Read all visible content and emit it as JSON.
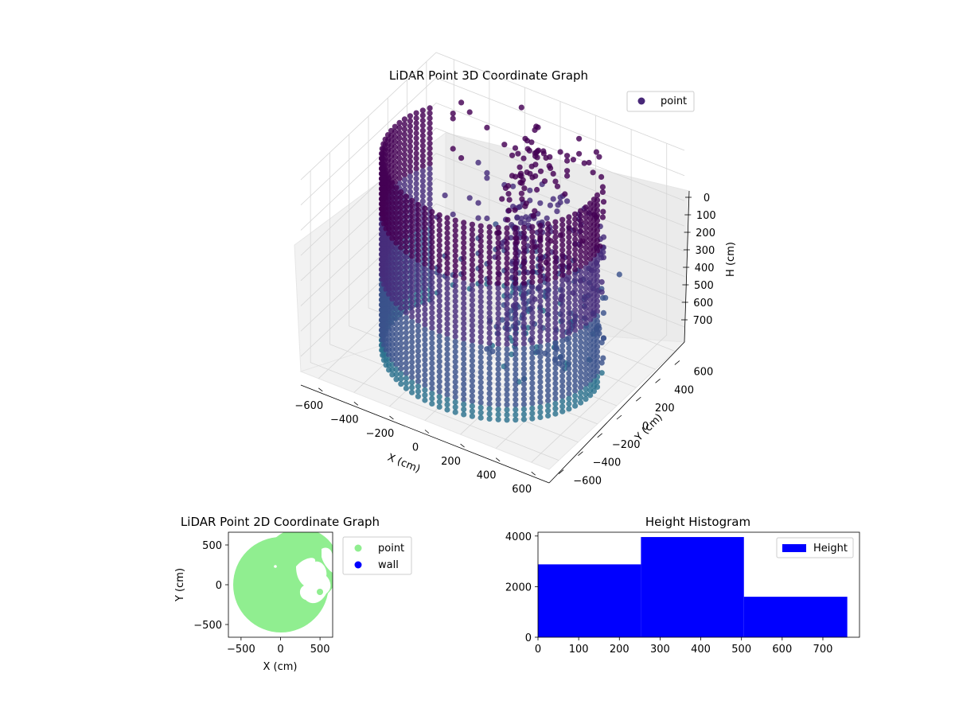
{
  "chart_data": [
    {
      "type": "scatter",
      "projection": "3d",
      "title": "LiDAR Point 3D Coordinate Graph",
      "xlabel": "X (cm)",
      "ylabel": "Y (cm)",
      "zlabel": "H (cm)",
      "xlim": [
        -700,
        700
      ],
      "ylim": [
        -700,
        700
      ],
      "zlim": [
        760,
        0
      ],
      "z_inverted": true,
      "x_ticks": [
        "−600",
        "−400",
        "−200",
        "0",
        "200",
        "400",
        "600"
      ],
      "y_ticks": [
        "−600",
        "−400",
        "−200",
        "0",
        "200",
        "400",
        "600"
      ],
      "z_ticks": [
        "0",
        "100",
        "200",
        "300",
        "400",
        "500",
        "600",
        "700"
      ],
      "grid": true,
      "legend": {
        "placement": "upper right",
        "entries": [
          {
            "label": "point",
            "color": "#482878"
          }
        ]
      },
      "colormap": "viridis",
      "series": [
        {
          "name": "point",
          "description_shape": "cylindrical wall of points, radius ~550 cm, heights 0–760 cm, with a gap in the wall facing +Y",
          "wall_radius": 550,
          "height_range": [
            0,
            760
          ],
          "sample_points": [
            {
              "x": -550,
              "y": 0,
              "z": 0
            },
            {
              "x": -550,
              "y": 0,
              "z": 750
            },
            {
              "x": 0,
              "y": -550,
              "z": 300
            },
            {
              "x": 550,
              "y": 0,
              "z": 500
            },
            {
              "x": -390,
              "y": -390,
              "z": 600
            },
            {
              "x": 390,
              "y": -390,
              "z": 200
            },
            {
              "x": -390,
              "y": 390,
              "z": 100
            },
            {
              "x": 100,
              "y": 200,
              "z": 650
            },
            {
              "x": 300,
              "y": 150,
              "z": 700
            },
            {
              "x": 200,
              "y": 350,
              "z": 400
            }
          ]
        }
      ]
    },
    {
      "type": "scatter",
      "title": "LiDAR Point 2D Coordinate Graph",
      "xlabel": "X (cm)",
      "ylabel": "Y (cm)",
      "xlim": [
        -660,
        660
      ],
      "ylim": [
        -660,
        660
      ],
      "x_ticks": [
        -500,
        0,
        500
      ],
      "y_ticks": [
        500,
        0,
        -500
      ],
      "x_tick_labels": [
        "−500",
        "0",
        "500"
      ],
      "y_tick_labels": [
        "500",
        "0",
        "−500"
      ],
      "legend": {
        "placement": "outside upper right",
        "entries": [
          {
            "label": "point",
            "color": "#90EE90"
          },
          {
            "label": "wall",
            "color": "#0000FF"
          }
        ]
      },
      "series": [
        {
          "name": "point",
          "color": "#90EE90",
          "description_shape": "filled disk of radius ~580 cm centered near (0,0), with white gaps on the right side"
        },
        {
          "name": "wall",
          "color": "#0000FF",
          "values": []
        }
      ]
    },
    {
      "type": "bar",
      "subtype": "histogram",
      "title": "Height Histogram",
      "x_ticks": [
        0,
        100,
        200,
        300,
        400,
        500,
        600,
        700
      ],
      "y_ticks": [
        0,
        2000,
        4000
      ],
      "y_tick_labels": [
        "0",
        "2000",
        "4000"
      ],
      "xlim": [
        0,
        790
      ],
      "ylim": [
        0,
        4150
      ],
      "bins": [
        [
          0,
          253
        ],
        [
          253,
          506
        ],
        [
          506,
          760
        ]
      ],
      "values": [
        2880,
        3960,
        1600
      ],
      "color": "#0000FF",
      "legend": {
        "placement": "upper right",
        "entries": [
          {
            "label": "Height",
            "color": "#0000FF"
          }
        ]
      }
    }
  ]
}
